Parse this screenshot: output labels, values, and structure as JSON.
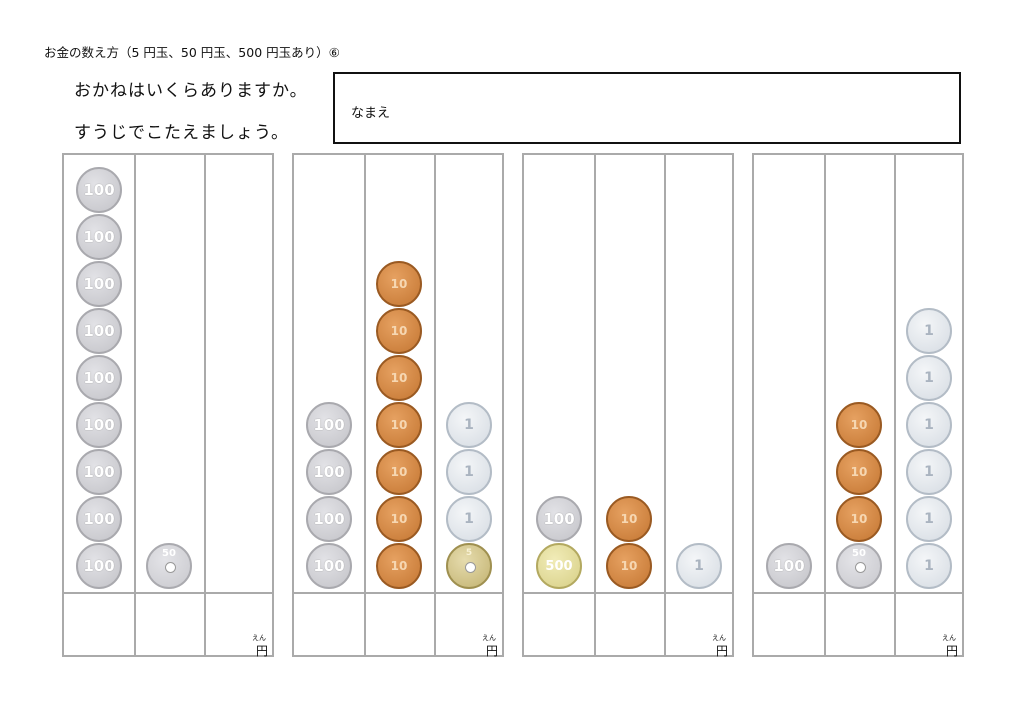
{
  "title": "お金の数え方（5 円玉、50 円玉、500 円玉あり）⑥",
  "instructions": [
    "おかねはいくらありますか。",
    "すうじでこたえましょう。"
  ],
  "name_label": "なまえ",
  "yen_label": "円",
  "yen_ruby": "えん",
  "coin_labels": {
    "100": "100",
    "50": "50",
    "10": "10",
    "5": "5",
    "1": "1",
    "500": "500"
  },
  "problems": [
    {
      "columns": [
        [
          "100",
          "100",
          "100",
          "100",
          "100",
          "100",
          "100",
          "100",
          "100"
        ],
        [
          "50"
        ],
        []
      ]
    },
    {
      "columns": [
        [
          "100",
          "100",
          "100",
          "100"
        ],
        [
          "10",
          "10",
          "10",
          "10",
          "10",
          "10",
          "10"
        ],
        [
          "1",
          "1",
          "1",
          "5"
        ]
      ]
    },
    {
      "columns": [
        [
          "100",
          "500"
        ],
        [
          "10",
          "10"
        ],
        [
          "1"
        ]
      ]
    },
    {
      "columns": [
        [
          "100"
        ],
        [
          "10",
          "10",
          "10",
          "50"
        ],
        [
          "1",
          "1",
          "1",
          "1",
          "1",
          "1"
        ]
      ]
    }
  ]
}
